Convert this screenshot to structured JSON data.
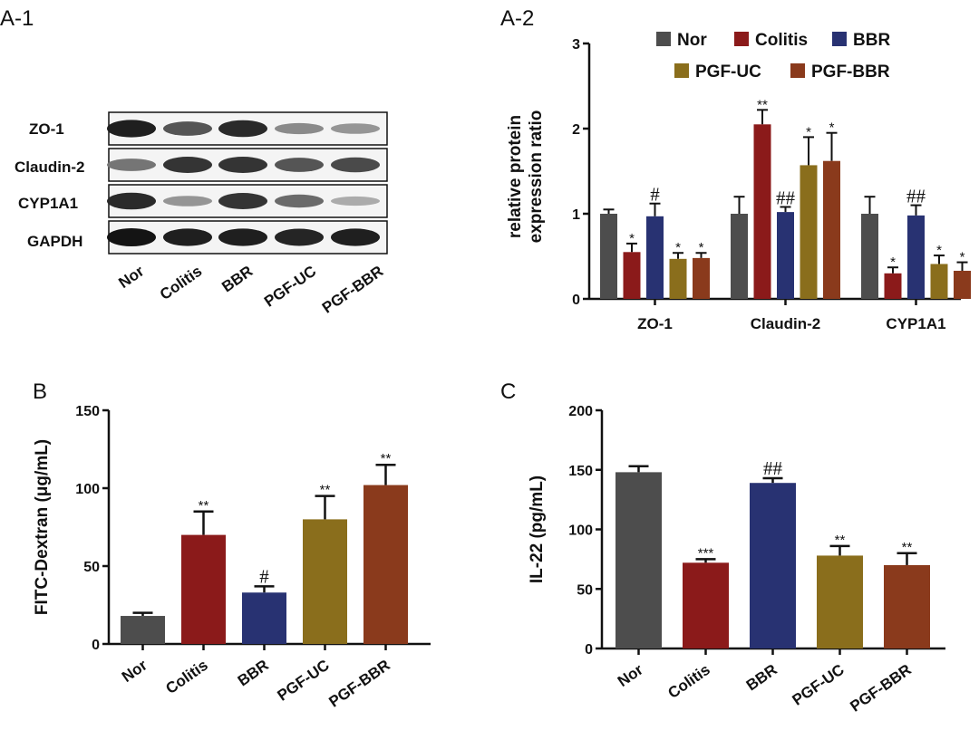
{
  "colors": {
    "Nor": "#4d4d4d",
    "Colitis": "#8b1a1a",
    "BBR": "#283272",
    "PGF-UC": "#8a6e1c",
    "PGF-BBR": "#8a3a1c"
  },
  "panels": {
    "a1": "A-1",
    "a2": "A-2",
    "b": "B",
    "c": "C"
  },
  "blot": {
    "rows": [
      "ZO-1",
      "Claudin-2",
      "CYP1A1",
      "GAPDH"
    ],
    "lanes": [
      "Nor",
      "Colitis",
      "BBR",
      "PGF-UC",
      "PGF-BBR"
    ],
    "intensity": [
      [
        0.95,
        0.7,
        0.9,
        0.45,
        0.4
      ],
      [
        0.55,
        0.85,
        0.85,
        0.7,
        0.75
      ],
      [
        0.9,
        0.4,
        0.85,
        0.6,
        0.3
      ],
      [
        1.0,
        0.95,
        0.95,
        0.92,
        0.95
      ]
    ]
  },
  "chart_data": [
    {
      "id": "A-2",
      "type": "bar",
      "ylabel_lines": [
        "relative protein",
        "expression ratio"
      ],
      "ylim": [
        0,
        3
      ],
      "yticks": [
        "0",
        "1",
        "2",
        "3"
      ],
      "categories": [
        "ZO-1",
        "Claudin-2",
        "CYP1A1"
      ],
      "legend": [
        "Nor",
        "Colitis",
        "BBR",
        "PGF-UC",
        "PGF-BBR"
      ],
      "series": [
        {
          "name": "Nor",
          "values": [
            1.0,
            1.0,
            1.0
          ],
          "errors": [
            0.05,
            0.2,
            0.2
          ],
          "annotations": [
            "",
            "",
            ""
          ]
        },
        {
          "name": "Colitis",
          "values": [
            0.55,
            2.05,
            0.3
          ],
          "errors": [
            0.1,
            0.17,
            0.07
          ],
          "annotations": [
            "*",
            "**",
            "*"
          ]
        },
        {
          "name": "BBR",
          "values": [
            0.97,
            1.02,
            0.98
          ],
          "errors": [
            0.15,
            0.06,
            0.12
          ],
          "annotations": [
            "#",
            "##",
            "##"
          ]
        },
        {
          "name": "PGF-UC",
          "values": [
            0.47,
            1.57,
            0.41
          ],
          "errors": [
            0.07,
            0.33,
            0.1
          ],
          "annotations": [
            "*",
            "*",
            "*"
          ]
        },
        {
          "name": "PGF-BBR",
          "values": [
            0.48,
            1.62,
            0.33
          ],
          "errors": [
            0.06,
            0.33,
            0.1
          ],
          "annotations": [
            "*",
            "*",
            "*"
          ]
        }
      ]
    },
    {
      "id": "B",
      "type": "bar",
      "ylabel": "FITC-Dextran (μg/mL)",
      "ylim": [
        0,
        150
      ],
      "yticks": [
        "0",
        "50",
        "100",
        "150"
      ],
      "categories": [
        "Nor",
        "Colitis",
        "BBR",
        "PGF-UC",
        "PGF-BBR"
      ],
      "values": [
        18,
        70,
        33,
        80,
        102
      ],
      "errors": [
        2,
        15,
        4,
        15,
        13
      ],
      "annotations": [
        "",
        "**",
        "#",
        "**",
        "**"
      ]
    },
    {
      "id": "C",
      "type": "bar",
      "ylabel": "IL-22 (pg/mL)",
      "ylim": [
        0,
        200
      ],
      "yticks": [
        "0",
        "50",
        "100",
        "150",
        "200"
      ],
      "categories": [
        "Nor",
        "Colitis",
        "BBR",
        "PGF-UC",
        "PGF-BBR"
      ],
      "values": [
        148,
        72,
        139,
        78,
        70
      ],
      "errors": [
        5,
        3,
        4,
        8,
        10
      ],
      "annotations": [
        "",
        "***",
        "##",
        "**",
        "**"
      ]
    }
  ]
}
